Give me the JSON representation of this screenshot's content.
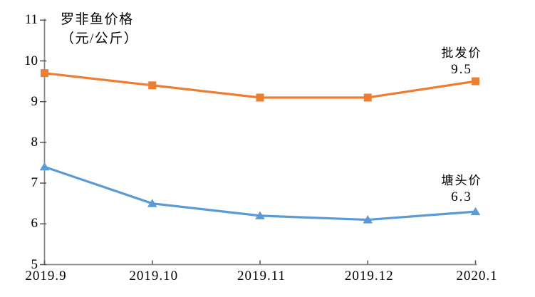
{
  "chart_data": {
    "type": "line",
    "title_lines": [
      "罗非鱼价格",
      "（元/公斤）"
    ],
    "ylabel": "元/公斤",
    "categories": [
      "2019.9",
      "2019.10",
      "2019.11",
      "2019.12",
      "2020.1"
    ],
    "series": [
      {
        "name": "批发价",
        "values": [
          9.7,
          9.4,
          9.1,
          9.1,
          9.5
        ],
        "color": "#ED7D31",
        "marker": "square",
        "end_label": "批发价",
        "end_value_label": "9.5"
      },
      {
        "name": "塘头价",
        "values": [
          7.4,
          6.5,
          6.2,
          6.1,
          6.3
        ],
        "color": "#5B9BD5",
        "marker": "triangle",
        "end_label": "塘头价",
        "end_value_label": "6.3"
      }
    ],
    "ylim": [
      5,
      11
    ],
    "y_ticks": [
      5,
      6,
      7,
      8,
      9,
      10,
      11
    ],
    "grid": false,
    "legend_position": "line-end-annotations",
    "axis_color": "#8a8a8a",
    "tick_color": "#555555",
    "text_color": "#000000"
  }
}
